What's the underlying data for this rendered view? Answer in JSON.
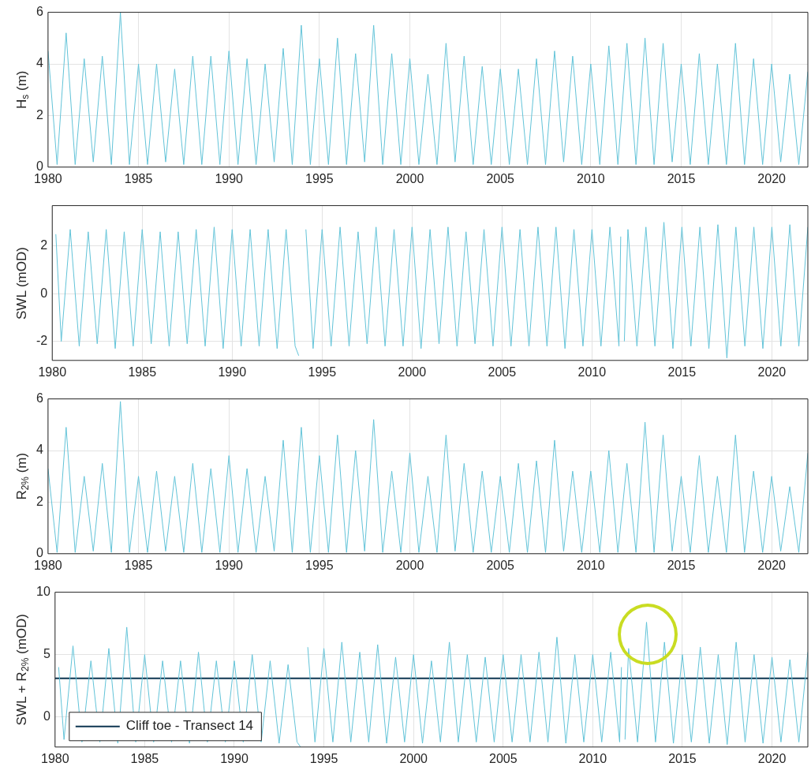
{
  "chart_data": [
    {
      "type": "line",
      "ylabel": "H$_{s}$ (m)",
      "xlim": [
        1980,
        2022
      ],
      "xticks": [
        1980,
        1985,
        1990,
        1995,
        2000,
        2005,
        2010,
        2015,
        2020
      ],
      "ylim": [
        0,
        6
      ],
      "yticks": [
        0,
        2,
        4,
        6
      ],
      "grid": true,
      "x": [
        1980,
        1980.5,
        1981,
        1981.5,
        1982,
        1982.5,
        1983,
        1983.5,
        1984,
        1984.5,
        1985,
        1985.5,
        1986,
        1986.5,
        1987,
        1987.5,
        1988,
        1988.5,
        1989,
        1989.5,
        1990,
        1990.5,
        1991,
        1991.5,
        1992,
        1992.5,
        1993,
        1993.5,
        1994,
        1994.5,
        1995,
        1995.5,
        1996,
        1996.5,
        1997,
        1997.5,
        1998,
        1998.5,
        1999,
        1999.5,
        2000,
        2000.5,
        2001,
        2001.5,
        2002,
        2002.5,
        2003,
        2003.5,
        2004,
        2004.5,
        2005,
        2005.5,
        2006,
        2006.5,
        2007,
        2007.5,
        2008,
        2008.5,
        2009,
        2009.5,
        2010,
        2010.5,
        2011,
        2011.5,
        2012,
        2012.5,
        2013,
        2013.5,
        2014,
        2014.5,
        2015,
        2015.5,
        2016,
        2016.5,
        2017,
        2017.5,
        2018,
        2018.5,
        2019,
        2019.5,
        2020,
        2020.5,
        2021,
        2021.5,
        2022
      ],
      "series": [
        {
          "color": "#62c3d8",
          "values": [
            4.5,
            0.1,
            5.2,
            0.1,
            4.2,
            0.2,
            4.3,
            0.1,
            6.0,
            0.1,
            4.0,
            0.1,
            4.0,
            0.2,
            3.8,
            0.1,
            4.3,
            0.1,
            4.3,
            0.1,
            4.5,
            0.1,
            4.2,
            0.1,
            4.0,
            0.2,
            4.6,
            0.1,
            5.5,
            0.1,
            4.2,
            0.1,
            5.0,
            0.1,
            4.4,
            0.2,
            5.5,
            0.1,
            4.4,
            0.1,
            4.2,
            0.1,
            3.6,
            0.1,
            4.8,
            0.2,
            4.3,
            0.1,
            3.9,
            0.1,
            3.8,
            0.1,
            3.8,
            0.1,
            4.2,
            0.1,
            4.5,
            0.2,
            4.3,
            0.1,
            4.0,
            0.1,
            4.7,
            0.1,
            4.8,
            0.1,
            5.0,
            0.1,
            4.8,
            0.2,
            4.0,
            0.1,
            4.4,
            0.1,
            4.0,
            0.1,
            4.8,
            0.1,
            4.2,
            0.1,
            4.0,
            0.2,
            3.6,
            0.1,
            3.7
          ]
        }
      ]
    },
    {
      "type": "line",
      "ylabel": "SWL (mOD)",
      "xlim": [
        1980,
        2022
      ],
      "xticks": [
        1980,
        1985,
        1990,
        1995,
        2000,
        2005,
        2010,
        2015,
        2020
      ],
      "ylim": [
        -2.8,
        3.7
      ],
      "yticks": [
        -2,
        0,
        2
      ],
      "grid": true,
      "x": [
        1980.2,
        1980.5,
        1981,
        1981.5,
        1982,
        1982.5,
        1983,
        1983.5,
        1984,
        1984.5,
        1985,
        1985.5,
        1986,
        1986.5,
        1987,
        1987.5,
        1988,
        1988.5,
        1989,
        1989.5,
        1990,
        1990.5,
        1991,
        1991.5,
        1992,
        1992.5,
        1993,
        1993.5,
        1993.7,
        1993.9,
        1994.1,
        1994.5,
        1995,
        1995.5,
        1996,
        1996.5,
        1997,
        1997.5,
        1998,
        1998.5,
        1999,
        1999.5,
        2000,
        2000.5,
        2001,
        2001.5,
        2002,
        2002.5,
        2003,
        2003.5,
        2004,
        2004.5,
        2005,
        2005.5,
        2006,
        2006.5,
        2007,
        2007.5,
        2008,
        2008.5,
        2009,
        2009.5,
        2010,
        2010.5,
        2011,
        2011.5,
        2011.6,
        2011.7,
        2011.8,
        2012,
        2012.5,
        2013,
        2013.5,
        2014,
        2014.5,
        2015,
        2015.5,
        2016,
        2016.5,
        2017,
        2017.5,
        2018,
        2018.5,
        2019,
        2019.5,
        2020,
        2020.5,
        2021,
        2021.5,
        2022
      ],
      "series": [
        {
          "color": "#62c3d8",
          "values": [
            2.5,
            -2.0,
            2.7,
            -2.2,
            2.6,
            -2.1,
            2.7,
            -2.3,
            2.6,
            -2.2,
            2.7,
            -2.1,
            2.6,
            -2.2,
            2.6,
            -2.1,
            2.7,
            -2.2,
            2.8,
            -2.3,
            2.7,
            -2.2,
            2.7,
            -2.2,
            2.7,
            -2.3,
            2.7,
            -2.2,
            -2.6,
            null,
            2.7,
            -2.3,
            2.7,
            -2.2,
            2.8,
            -2.2,
            2.6,
            -2.1,
            2.8,
            -2.2,
            2.7,
            -2.2,
            2.8,
            -2.3,
            2.7,
            -2.1,
            2.8,
            -2.2,
            2.6,
            -2.1,
            2.7,
            -2.2,
            2.8,
            -2.2,
            2.7,
            -2.2,
            2.8,
            -2.2,
            2.8,
            -2.3,
            2.7,
            -2.2,
            2.7,
            -2.2,
            2.8,
            -2.2,
            2.4,
            null,
            -2.0,
            2.7,
            -2.2,
            2.8,
            -2.2,
            3.0,
            -2.3,
            2.8,
            -2.2,
            2.8,
            -2.3,
            2.9,
            -2.7,
            2.8,
            -2.2,
            2.8,
            -2.3,
            2.8,
            -2.2,
            2.9,
            -2.2,
            2.8
          ]
        }
      ]
    },
    {
      "type": "line",
      "ylabel": "R$_{2%}$ (m)",
      "xlim": [
        1980,
        2022
      ],
      "xticks": [
        1980,
        1985,
        1990,
        1995,
        2000,
        2005,
        2010,
        2015,
        2020
      ],
      "ylim": [
        0,
        6
      ],
      "yticks": [
        0,
        2,
        4,
        6
      ],
      "grid": true,
      "x": [
        1980,
        1980.5,
        1981,
        1981.5,
        1982,
        1982.5,
        1983,
        1983.5,
        1984,
        1984.5,
        1985,
        1985.5,
        1986,
        1986.5,
        1987,
        1987.5,
        1988,
        1988.5,
        1989,
        1989.5,
        1990,
        1990.5,
        1991,
        1991.5,
        1992,
        1992.5,
        1993,
        1993.5,
        1994,
        1994.5,
        1995,
        1995.5,
        1996,
        1996.5,
        1997,
        1997.5,
        1998,
        1998.5,
        1999,
        1999.5,
        2000,
        2000.5,
        2001,
        2001.5,
        2002,
        2002.5,
        2003,
        2003.5,
        2004,
        2004.5,
        2005,
        2005.5,
        2006,
        2006.5,
        2007,
        2007.5,
        2008,
        2008.5,
        2009,
        2009.5,
        2010,
        2010.5,
        2011,
        2011.5,
        2012,
        2012.5,
        2013,
        2013.5,
        2014,
        2014.5,
        2015,
        2015.5,
        2016,
        2016.5,
        2017,
        2017.5,
        2018,
        2018.5,
        2019,
        2019.5,
        2020,
        2020.5,
        2021,
        2021.5,
        2022
      ],
      "series": [
        {
          "color": "#62c3d8",
          "values": [
            3.3,
            0.05,
            4.9,
            0.05,
            3.0,
            0.1,
            3.5,
            0.05,
            5.9,
            0.05,
            3.0,
            0.05,
            3.2,
            0.1,
            3.0,
            0.05,
            3.5,
            0.05,
            3.3,
            0.05,
            3.8,
            0.05,
            3.3,
            0.05,
            3.0,
            0.1,
            4.4,
            0.05,
            4.9,
            0.05,
            3.8,
            0.05,
            4.6,
            0.05,
            4.0,
            0.1,
            5.2,
            0.05,
            3.2,
            0.05,
            3.9,
            0.05,
            3.0,
            0.05,
            4.6,
            0.1,
            3.5,
            0.05,
            3.2,
            0.05,
            3.0,
            0.05,
            3.5,
            0.05,
            3.6,
            0.05,
            4.4,
            0.1,
            3.2,
            0.05,
            3.2,
            0.05,
            4.0,
            0.05,
            3.5,
            0.05,
            5.1,
            0.05,
            4.6,
            0.1,
            3.0,
            0.05,
            3.8,
            0.05,
            3.0,
            0.05,
            4.6,
            0.05,
            3.2,
            0.05,
            3.0,
            0.1,
            2.6,
            0.05,
            3.9
          ]
        }
      ]
    },
    {
      "type": "line",
      "ylabel": "SWL + R$_{2%}$ (mOD)",
      "xlim": [
        1980,
        2022
      ],
      "xticks": [
        1980,
        1985,
        1990,
        1995,
        2000,
        2005,
        2010,
        2015,
        2020
      ],
      "ylim": [
        -2.4,
        10
      ],
      "yticks": [
        0,
        5,
        10
      ],
      "grid": true,
      "legend": "bottom left",
      "x": [
        1980.2,
        1980.5,
        1981,
        1981.5,
        1982,
        1982.5,
        1983,
        1983.5,
        1984,
        1984.5,
        1985,
        1985.5,
        1986,
        1986.5,
        1987,
        1987.5,
        1988,
        1988.5,
        1989,
        1989.5,
        1990,
        1990.5,
        1991,
        1991.5,
        1992,
        1992.5,
        1993,
        1993.5,
        1993.7,
        1993.9,
        1994.1,
        1994.5,
        1995,
        1995.5,
        1996,
        1996.5,
        1997,
        1997.5,
        1998,
        1998.5,
        1999,
        1999.5,
        2000,
        2000.5,
        2001,
        2001.5,
        2002,
        2002.5,
        2003,
        2003.5,
        2004,
        2004.5,
        2005,
        2005.5,
        2006,
        2006.5,
        2007,
        2007.5,
        2008,
        2008.5,
        2009,
        2009.5,
        2010,
        2010.5,
        2011,
        2011.5,
        2011.6,
        2011.7,
        2011.8,
        2012,
        2012.5,
        2013,
        2013.5,
        2014,
        2014.5,
        2015,
        2015.5,
        2016,
        2016.5,
        2017,
        2017.5,
        2018,
        2018.5,
        2019,
        2019.5,
        2020,
        2020.5,
        2021,
        2021.5,
        2022
      ],
      "series": [
        {
          "color": "#62c3d8",
          "values": [
            4.0,
            -1.8,
            5.7,
            -2.0,
            4.5,
            -2.0,
            5.5,
            -2.1,
            7.2,
            -2.0,
            5.0,
            -2.0,
            4.5,
            -2.0,
            4.5,
            -2.1,
            5.2,
            -2.0,
            4.5,
            -2.0,
            4.5,
            -2.0,
            5.0,
            -2.0,
            4.5,
            -2.1,
            4.2,
            -2.0,
            -2.4,
            null,
            5.6,
            -2.0,
            5.5,
            -2.0,
            6.0,
            -2.0,
            5.2,
            -2.0,
            5.8,
            -2.1,
            4.8,
            -2.0,
            5.0,
            -2.1,
            4.5,
            -2.0,
            6.0,
            -2.0,
            5.0,
            -2.0,
            4.8,
            -2.0,
            5.0,
            -2.0,
            5.0,
            -2.0,
            5.2,
            -2.0,
            6.4,
            -2.1,
            5.0,
            -2.0,
            5.0,
            -2.0,
            5.2,
            -2.0,
            4.0,
            null,
            -1.8,
            5.5,
            -2.0,
            7.6,
            -2.0,
            6.0,
            -2.1,
            5.0,
            -2.0,
            5.6,
            -2.1,
            5.0,
            -2.2,
            6.0,
            -2.0,
            5.0,
            -2.1,
            4.8,
            -2.0,
            4.6,
            -2.0,
            5.2
          ]
        }
      ],
      "ref_lines": [
        {
          "axis": "y",
          "value": 3.1,
          "label": "Cliff toe - Transect 14",
          "color": "#0d3550"
        }
      ]
    }
  ]
}
